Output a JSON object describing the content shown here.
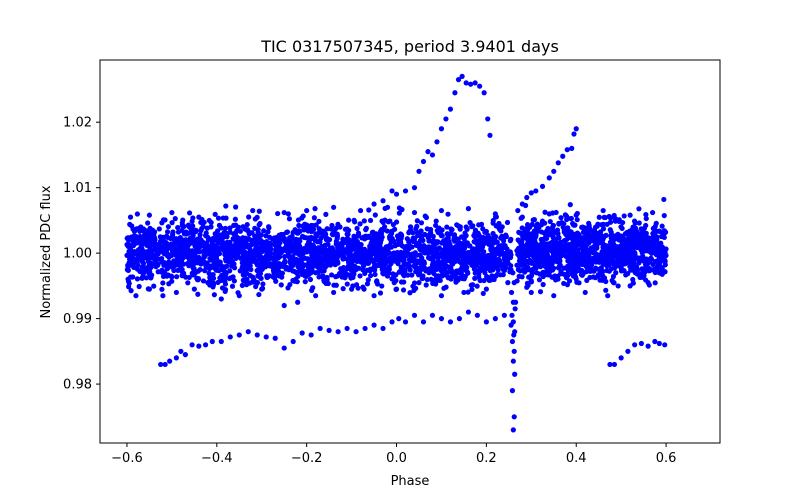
{
  "chart_data": {
    "type": "scatter",
    "title": "TIC 0317507345, period 3.9401 days",
    "xlabel": "Phase",
    "ylabel": "Normalized PDC flux",
    "xlim": [
      -0.66,
      0.72
    ],
    "ylim": [
      0.971,
      1.0295
    ],
    "xticks": [
      {
        "value": -0.6,
        "label": "−0.6"
      },
      {
        "value": -0.4,
        "label": "−0.4"
      },
      {
        "value": -0.2,
        "label": "−0.2"
      },
      {
        "value": 0.0,
        "label": "0.0"
      },
      {
        "value": 0.2,
        "label": "0.2"
      },
      {
        "value": 0.4,
        "label": "0.4"
      },
      {
        "value": 0.6,
        "label": "0.6"
      }
    ],
    "yticks": [
      {
        "value": 0.98,
        "label": "0.98"
      },
      {
        "value": 0.99,
        "label": "0.99"
      },
      {
        "value": 1.0,
        "label": "1.00"
      },
      {
        "value": 1.01,
        "label": "1.01"
      },
      {
        "value": 1.02,
        "label": "1.02"
      }
    ],
    "grid": false,
    "marker_color": "#0000ff",
    "series": [
      {
        "name": "lower-arc",
        "points": [
          [
            -0.525,
            0.983
          ],
          [
            -0.515,
            0.983
          ],
          [
            -0.505,
            0.9835
          ],
          [
            -0.49,
            0.984
          ],
          [
            -0.48,
            0.985
          ],
          [
            -0.47,
            0.9845
          ],
          [
            -0.455,
            0.986
          ],
          [
            -0.44,
            0.9858
          ],
          [
            -0.425,
            0.986
          ],
          [
            -0.41,
            0.9865
          ],
          [
            -0.39,
            0.9865
          ],
          [
            -0.37,
            0.9872
          ],
          [
            -0.35,
            0.9875
          ],
          [
            -0.33,
            0.988
          ],
          [
            -0.31,
            0.9875
          ],
          [
            -0.29,
            0.9872
          ],
          [
            -0.27,
            0.987
          ],
          [
            -0.25,
            0.9855
          ],
          [
            -0.23,
            0.9865
          ],
          [
            -0.21,
            0.9878
          ],
          [
            -0.19,
            0.9875
          ],
          [
            -0.17,
            0.9885
          ],
          [
            -0.15,
            0.9882
          ],
          [
            -0.13,
            0.988
          ],
          [
            -0.11,
            0.9885
          ],
          [
            -0.09,
            0.988
          ],
          [
            -0.07,
            0.9885
          ],
          [
            -0.05,
            0.989
          ],
          [
            -0.03,
            0.9885
          ],
          [
            -0.01,
            0.9895
          ],
          [
            0.005,
            0.99
          ],
          [
            0.02,
            0.9895
          ],
          [
            0.04,
            0.9905
          ],
          [
            0.06,
            0.9895
          ],
          [
            0.08,
            0.9905
          ],
          [
            0.1,
            0.99
          ],
          [
            0.12,
            0.9895
          ],
          [
            0.14,
            0.99
          ],
          [
            0.16,
            0.991
          ],
          [
            0.18,
            0.9905
          ],
          [
            0.2,
            0.9895
          ],
          [
            0.22,
            0.99
          ],
          [
            0.24,
            0.9905
          ],
          [
            0.475,
            0.983
          ],
          [
            0.485,
            0.983
          ],
          [
            0.5,
            0.984
          ],
          [
            0.515,
            0.985
          ],
          [
            0.53,
            0.986
          ],
          [
            0.545,
            0.9862
          ],
          [
            0.56,
            0.9858
          ],
          [
            0.575,
            0.9865
          ],
          [
            0.585,
            0.9862
          ],
          [
            0.597,
            0.986
          ]
        ]
      },
      {
        "name": "upper-arc",
        "points": [
          [
            -0.05,
            1.0075
          ],
          [
            -0.03,
            1.008
          ],
          [
            -0.01,
            1.0095
          ],
          [
            0.0,
            1.009
          ],
          [
            0.02,
            1.0095
          ],
          [
            0.04,
            1.01
          ],
          [
            0.05,
            1.0125
          ],
          [
            0.06,
            1.014
          ],
          [
            0.07,
            1.0155
          ],
          [
            0.08,
            1.015
          ],
          [
            0.09,
            1.017
          ],
          [
            0.1,
            1.019
          ],
          [
            0.11,
            1.0205
          ],
          [
            0.12,
            1.022
          ],
          [
            0.13,
            1.0245
          ],
          [
            0.138,
            1.0265
          ],
          [
            0.146,
            1.027
          ],
          [
            0.155,
            1.026
          ],
          [
            0.165,
            1.0258
          ],
          [
            0.175,
            1.026
          ],
          [
            0.185,
            1.0255
          ],
          [
            0.195,
            1.0245
          ],
          [
            0.203,
            1.0205
          ],
          [
            0.208,
            1.018
          ],
          [
            0.27,
            1.0065
          ],
          [
            0.28,
            1.0075
          ],
          [
            0.29,
            1.0085
          ],
          [
            0.3,
            1.0092
          ],
          [
            0.31,
            1.0095
          ],
          [
            0.325,
            1.0102
          ],
          [
            0.34,
            1.0115
          ],
          [
            0.35,
            1.0125
          ],
          [
            0.36,
            1.0138
          ],
          [
            0.37,
            1.0148
          ],
          [
            0.38,
            1.0158
          ],
          [
            0.39,
            1.016
          ],
          [
            0.395,
            1.0182
          ],
          [
            0.4,
            1.019
          ]
        ]
      },
      {
        "name": "eclipse-dip",
        "points": [
          [
            0.26,
            0.973
          ],
          [
            0.262,
            0.975
          ],
          [
            0.258,
            0.979
          ],
          [
            0.263,
            0.9815
          ],
          [
            0.26,
            0.9835
          ],
          [
            0.262,
            0.985
          ],
          [
            0.258,
            0.9865
          ],
          [
            0.263,
            0.988
          ],
          [
            0.26,
            0.9895
          ],
          [
            0.257,
            0.9905
          ],
          [
            0.264,
            0.9915
          ],
          [
            0.26,
            0.9925
          ],
          [
            0.256,
            0.994
          ],
          [
            0.262,
            0.9955
          ],
          [
            0.259,
            0.997
          ],
          [
            0.265,
            0.9925
          ],
          [
            0.255,
            0.989
          ],
          [
            0.261,
            0.9875
          ]
        ]
      },
      {
        "name": "lower-scatter",
        "points": [
          [
            -0.58,
            0.9935
          ],
          [
            -0.55,
            0.9945
          ],
          [
            -0.52,
            0.9935
          ],
          [
            -0.49,
            0.994
          ],
          [
            -0.45,
            0.9945
          ],
          [
            -0.42,
            0.9955
          ],
          [
            -0.39,
            0.993
          ],
          [
            -0.35,
            0.9935
          ],
          [
            -0.3,
            0.9945
          ],
          [
            -0.25,
            0.992
          ],
          [
            -0.22,
            0.9925
          ],
          [
            -0.18,
            0.9935
          ],
          [
            -0.14,
            0.994
          ],
          [
            -0.1,
            0.9945
          ],
          [
            -0.05,
            0.9935
          ],
          [
            0.0,
            0.9945
          ],
          [
            0.05,
            0.9955
          ],
          [
            0.1,
            0.9935
          ],
          [
            0.15,
            0.994
          ],
          [
            0.2,
            0.9945
          ],
          [
            0.3,
            0.994
          ],
          [
            0.35,
            0.9935
          ],
          [
            0.42,
            0.994
          ],
          [
            0.47,
            0.9935
          ],
          [
            0.52,
            0.995
          ],
          [
            0.56,
            0.9955
          ]
        ]
      },
      {
        "name": "upper-scatter",
        "points": [
          [
            -0.55,
            1.0058
          ],
          [
            -0.5,
            1.0062
          ],
          [
            -0.44,
            1.0055
          ],
          [
            -0.38,
            1.0072
          ],
          [
            -0.32,
            1.0065
          ],
          [
            -0.25,
            1.0062
          ],
          [
            -0.2,
            1.0065
          ],
          [
            -0.14,
            1.007
          ],
          [
            -0.08,
            1.0065
          ],
          [
            -0.02,
            1.007
          ],
          [
            0.04,
            1.0062
          ],
          [
            0.1,
            1.0065
          ],
          [
            0.16,
            1.0068
          ],
          [
            0.22,
            1.006
          ],
          [
            0.28,
            1.0055
          ],
          [
            0.34,
            1.006
          ],
          [
            0.4,
            1.0058
          ],
          [
            0.46,
            1.0065
          ],
          [
            0.52,
            1.0058
          ],
          [
            0.57,
            1.0062
          ],
          [
            0.595,
            1.0082
          ]
        ]
      }
    ],
    "band": {
      "name": "main-band",
      "segments": [
        {
          "x0": -0.6,
          "x1": 0.24,
          "center": 1.0,
          "spread": 0.0052,
          "count": 2400
        },
        {
          "x0": 0.24,
          "x1": 0.255,
          "center": 0.9995,
          "spread": 0.0045,
          "count": 40
        },
        {
          "x0": 0.268,
          "x1": 0.6,
          "center": 1.0005,
          "spread": 0.005,
          "count": 1100
        }
      ]
    }
  }
}
